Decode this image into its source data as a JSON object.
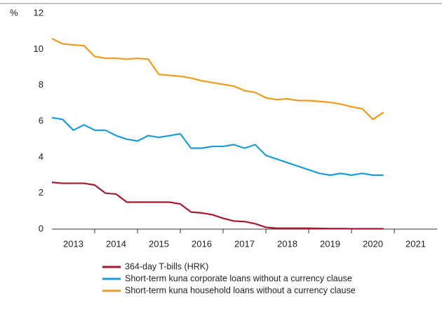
{
  "chart_data": {
    "type": "line",
    "y_label": "%",
    "x": [
      2013.0,
      2013.25,
      2013.5,
      2013.75,
      2014.0,
      2014.25,
      2014.5,
      2014.75,
      2015.0,
      2015.25,
      2015.5,
      2015.75,
      2016.0,
      2016.25,
      2016.5,
      2016.75,
      2017.0,
      2017.25,
      2017.5,
      2017.75,
      2018.0,
      2018.25,
      2018.5,
      2018.75,
      2019.0,
      2019.25,
      2019.5,
      2019.75,
      2020.0,
      2020.25,
      2020.5,
      2020.75
    ],
    "series": [
      {
        "name": "364-day T-bills (HRK)",
        "color": "#a6192e",
        "values": [
          2.6,
          2.55,
          2.55,
          2.55,
          2.45,
          2.0,
          1.95,
          1.5,
          1.5,
          1.5,
          1.5,
          1.5,
          1.4,
          0.95,
          0.9,
          0.8,
          0.6,
          0.45,
          0.42,
          0.3,
          0.1,
          0.05,
          0.05,
          0.05,
          0.05,
          0.04,
          0.03,
          0.03,
          0.02,
          0.02,
          0.02,
          0.02
        ]
      },
      {
        "name": "Short-term kuna corporate loans without a currency clause",
        "color": "#1a9cd8",
        "values": [
          6.2,
          6.1,
          5.5,
          5.8,
          5.5,
          5.5,
          5.2,
          5.0,
          4.9,
          5.2,
          5.1,
          5.2,
          5.3,
          4.5,
          4.5,
          4.6,
          4.6,
          4.7,
          4.5,
          4.7,
          4.1,
          3.9,
          3.7,
          3.5,
          3.3,
          3.1,
          3.0,
          3.1,
          3.0,
          3.1,
          3.0,
          3.0
        ]
      },
      {
        "name": "Short-term kuna household loans without a currency clause",
        "color": "#f29a1c",
        "values": [
          10.6,
          10.3,
          10.25,
          10.2,
          9.6,
          9.5,
          9.5,
          9.45,
          9.5,
          9.45,
          8.6,
          8.55,
          8.5,
          8.4,
          8.25,
          8.15,
          8.05,
          7.95,
          7.7,
          7.6,
          7.3,
          7.2,
          7.25,
          7.15,
          7.15,
          7.1,
          7.05,
          6.95,
          6.8,
          6.7,
          6.1,
          6.5
        ]
      }
    ],
    "xlim": [
      2013,
      2022
    ],
    "xticks": [
      {
        "value": 2013.5,
        "label": "2013"
      },
      {
        "value": 2014.5,
        "label": "2014"
      },
      {
        "value": 2015.5,
        "label": "2015"
      },
      {
        "value": 2016.5,
        "label": "2016"
      },
      {
        "value": 2017.5,
        "label": "2017"
      },
      {
        "value": 2018.5,
        "label": "2018"
      },
      {
        "value": 2019.5,
        "label": "2019"
      },
      {
        "value": 2020.5,
        "label": "2020"
      },
      {
        "value": 2021.5,
        "label": "2021"
      }
    ],
    "ylim": [
      0,
      12
    ],
    "yticks": [
      0,
      2,
      4,
      6,
      8,
      10,
      12
    ],
    "grid": false
  }
}
